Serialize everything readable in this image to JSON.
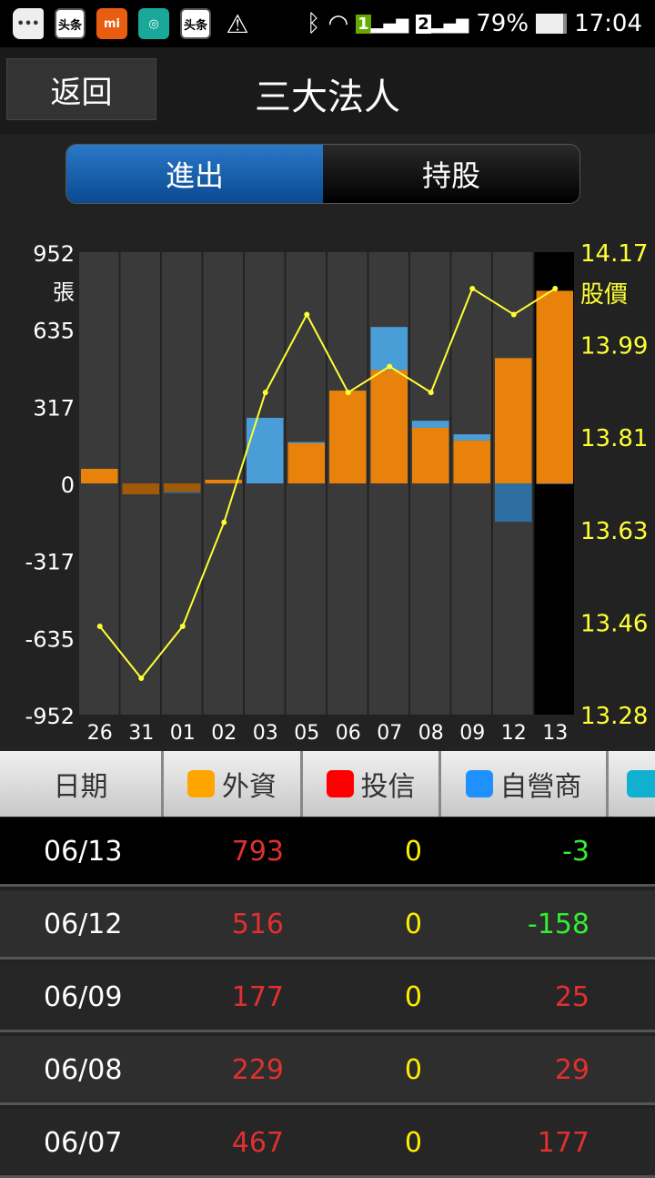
{
  "status_bar": {
    "battery": "79%",
    "time": "17:04",
    "sim1": "1",
    "sim2": "2",
    "icons": [
      "more-icon",
      "toutiao-icon",
      "mi-icon",
      "camera-app-icon",
      "toutiao-icon",
      "flash-icon",
      "bluetooth-icon",
      "wifi-icon",
      "signal-icon",
      "battery-icon"
    ],
    "toutiao_label": "头条",
    "mi_label": "mi"
  },
  "header": {
    "back_label": "返回",
    "title": "三大法人"
  },
  "tabs": [
    {
      "label": "進出",
      "active": true
    },
    {
      "label": "持股",
      "active": false
    }
  ],
  "chart_data": {
    "type": "bar",
    "categories": [
      "26",
      "31",
      "01",
      "02",
      "03",
      "05",
      "06",
      "07",
      "08",
      "09",
      "12",
      "13"
    ],
    "selected": "13",
    "left_axis": {
      "ticks": [
        "952",
        "635",
        "317",
        "0",
        "-317",
        "-635",
        "-952"
      ],
      "unit": "張",
      "range": [
        -952,
        952
      ]
    },
    "right_axis": {
      "ticks": [
        "14.17",
        "13.99",
        "13.81",
        "13.63",
        "13.46",
        "13.28"
      ],
      "unit": "股價",
      "range": [
        13.28,
        14.17
      ]
    },
    "series": [
      {
        "name": "外資",
        "type": "bar",
        "color": "#e8820a",
        "values": [
          60,
          -45,
          -35,
          15,
          0,
          165,
          382,
          467,
          229,
          177,
          516,
          793
        ]
      },
      {
        "name": "自營商",
        "type": "bar",
        "color": "#4a9ed8",
        "values": [
          0,
          0,
          -5,
          0,
          270,
          5,
          0,
          177,
          29,
          25,
          -158,
          -3
        ]
      },
      {
        "name": "股價",
        "type": "line",
        "color": "#ffff33",
        "values": [
          13.45,
          13.35,
          13.45,
          13.65,
          13.9,
          14.05,
          13.9,
          13.95,
          13.9,
          14.1,
          14.05,
          14.1
        ]
      }
    ]
  },
  "table": {
    "headers": [
      {
        "label": "日期"
      },
      {
        "label": "外資",
        "color": "#ffa500"
      },
      {
        "label": "投信",
        "color": "#ff0000"
      },
      {
        "label": "自營商",
        "color": "#1e90ff"
      },
      {
        "label": "",
        "color": "#12b0d0"
      }
    ],
    "rows": [
      {
        "date": "06/13",
        "foreign": "793",
        "trust": "0",
        "dealer": "-3"
      },
      {
        "date": "06/12",
        "foreign": "516",
        "trust": "0",
        "dealer": "-158"
      },
      {
        "date": "06/09",
        "foreign": "177",
        "trust": "0",
        "dealer": "25"
      },
      {
        "date": "06/08",
        "foreign": "229",
        "trust": "0",
        "dealer": "29"
      },
      {
        "date": "06/07",
        "foreign": "467",
        "trust": "0",
        "dealer": "177"
      }
    ]
  }
}
